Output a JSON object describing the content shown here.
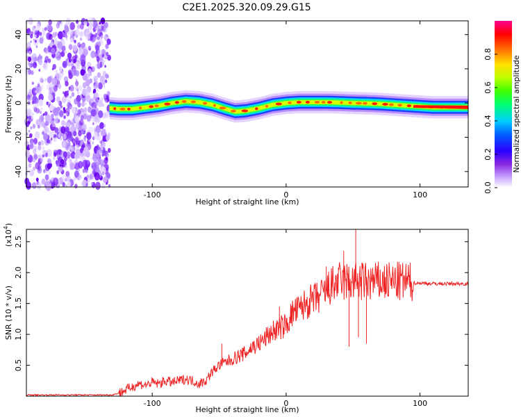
{
  "chart_data": [
    {
      "type": "heatmap",
      "title": "C2E1.2025.320.09.29.G15",
      "xlabel": "Height of straight line (km)",
      "ylabel": "Frequency (Hz)",
      "xlim": [
        -194,
        136
      ],
      "ylim": [
        -49,
        48
      ],
      "xticks": [
        -100,
        0,
        100
      ],
      "yticks": [
        -40,
        -20,
        0,
        20,
        40
      ],
      "xtick_labels": [
        "-100",
        "0",
        "100"
      ],
      "ytick_labels": [
        "-40",
        "-20",
        "0",
        "20",
        "40"
      ],
      "noise_region_x": [
        -194,
        -132
      ],
      "ridge": {
        "x": [
          -132,
          -125,
          -115,
          -105,
          -95,
          -85,
          -75,
          -65,
          -55,
          -45,
          -38,
          -30,
          -20,
          -10,
          0,
          10,
          20,
          30,
          40,
          50,
          60,
          70,
          80,
          90,
          100,
          110,
          120,
          136
        ],
        "freq": [
          -3,
          -3.5,
          -3.5,
          -2.5,
          -1.5,
          0,
          1,
          0.5,
          -1,
          -3.5,
          -5,
          -4.5,
          -3,
          -1,
          0,
          0.5,
          0.5,
          0.5,
          0.3,
          0,
          -0.2,
          -0.5,
          -1,
          -1.5,
          -2,
          -2.5,
          -2.5,
          -2.5
        ]
      },
      "colorbar": {
        "label": "Normalized spectral amplitude",
        "range": [
          0,
          1
        ],
        "ticks": [
          0.0,
          0.2,
          0.4,
          0.6,
          0.8
        ],
        "tick_labels": [
          "0.0",
          "0.2",
          "0.4",
          "0.6",
          "0.8"
        ],
        "colors": [
          "#ffffff",
          "#a070ff",
          "#7000ff",
          "#0000ff",
          "#00c0ff",
          "#00ffa0",
          "#00ff00",
          "#a0ff00",
          "#ffff00",
          "#ffa000",
          "#ff0000",
          "#ff0080"
        ]
      }
    },
    {
      "type": "line",
      "title": "",
      "xlabel": "Height of straight line (km)",
      "ylabel": "SNR (10 * v/v)",
      "y_multiplier_label": "(x10",
      "y_multiplier_exp": "4",
      "y_multiplier_close": ")",
      "xlim": [
        -194,
        136
      ],
      "ylim": [
        0,
        2.7
      ],
      "xticks": [
        -100,
        0,
        100
      ],
      "yticks": [
        0.5,
        1.0,
        1.5,
        2.0,
        2.5
      ],
      "xtick_labels": [
        "-100",
        "0",
        "100"
      ],
      "ytick_labels": [
        "0.5",
        "1.0",
        "1.5",
        "2.0",
        "2.5"
      ],
      "line_color": "#ee2222",
      "series": [
        {
          "name": "SNR",
          "x": [
            -194,
            -170,
            -150,
            -130,
            -125,
            -120,
            -115,
            -110,
            -105,
            -100,
            -95,
            -90,
            -85,
            -80,
            -75,
            -70,
            -65,
            -60,
            -55,
            -50,
            -45,
            -40,
            -35,
            -30,
            -25,
            -20,
            -15,
            -10,
            -5,
            0,
            5,
            10,
            15,
            20,
            25,
            30,
            35,
            40,
            45,
            50,
            55,
            60,
            65,
            70,
            75,
            80,
            85,
            90,
            95,
            100,
            110,
            120,
            136
          ],
          "y": [
            0.02,
            0.02,
            0.02,
            0.02,
            0.05,
            0.1,
            0.15,
            0.2,
            0.18,
            0.22,
            0.2,
            0.25,
            0.22,
            0.25,
            0.28,
            0.25,
            0.2,
            0.25,
            0.4,
            0.5,
            0.55,
            0.6,
            0.65,
            0.7,
            0.8,
            0.85,
            0.95,
            1.05,
            1.1,
            1.15,
            1.35,
            1.4,
            1.5,
            1.55,
            1.6,
            1.7,
            1.8,
            1.85,
            1.85,
            1.85,
            1.85,
            1.85,
            1.85,
            1.85,
            1.85,
            1.85,
            1.85,
            1.85,
            1.83,
            1.83,
            1.82,
            1.82,
            1.82
          ]
        }
      ],
      "spikes": [
        {
          "x": 43,
          "y": 2.35
        },
        {
          "x": 47,
          "y": 0.8
        },
        {
          "x": 52,
          "y": 2.7
        },
        {
          "x": 54,
          "y": 0.95
        },
        {
          "x": 60,
          "y": 0.85
        },
        {
          "x": -48,
          "y": 0.85
        },
        {
          "x": -5,
          "y": 1.45
        },
        {
          "x": 30,
          "y": 2.1
        }
      ]
    }
  ]
}
